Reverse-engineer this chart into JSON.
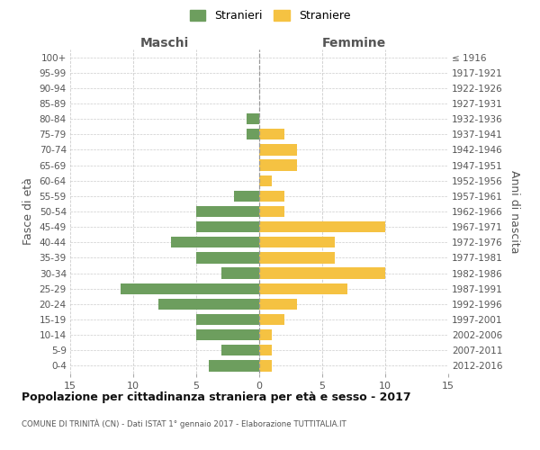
{
  "age_groups": [
    "100+",
    "95-99",
    "90-94",
    "85-89",
    "80-84",
    "75-79",
    "70-74",
    "65-69",
    "60-64",
    "55-59",
    "50-54",
    "45-49",
    "40-44",
    "35-39",
    "30-34",
    "25-29",
    "20-24",
    "15-19",
    "10-14",
    "5-9",
    "0-4"
  ],
  "birth_years": [
    "≤ 1916",
    "1917-1921",
    "1922-1926",
    "1927-1931",
    "1932-1936",
    "1937-1941",
    "1942-1946",
    "1947-1951",
    "1952-1956",
    "1957-1961",
    "1962-1966",
    "1967-1971",
    "1972-1976",
    "1977-1981",
    "1982-1986",
    "1987-1991",
    "1992-1996",
    "1997-2001",
    "2002-2006",
    "2007-2011",
    "2012-2016"
  ],
  "males": [
    0,
    0,
    0,
    0,
    1,
    1,
    0,
    0,
    0,
    2,
    5,
    5,
    7,
    5,
    3,
    11,
    8,
    5,
    5,
    3,
    4
  ],
  "females": [
    0,
    0,
    0,
    0,
    0,
    2,
    3,
    3,
    1,
    2,
    2,
    10,
    6,
    6,
    10,
    7,
    3,
    2,
    1,
    1,
    1
  ],
  "male_color": "#6d9e5e",
  "female_color": "#f5c242",
  "background_color": "#ffffff",
  "grid_color": "#cccccc",
  "title": "Popolazione per cittadinanza straniera per età e sesso - 2017",
  "subtitle": "COMUNE DI TRINITÀ (CN) - Dati ISTAT 1° gennaio 2017 - Elaborazione TUTTITALIA.IT",
  "xlabel_left": "Maschi",
  "xlabel_right": "Femmine",
  "ylabel_left": "Fasce di età",
  "ylabel_right": "Anni di nascita",
  "legend_stranieri": "Stranieri",
  "legend_straniere": "Straniere",
  "xlim": 15
}
